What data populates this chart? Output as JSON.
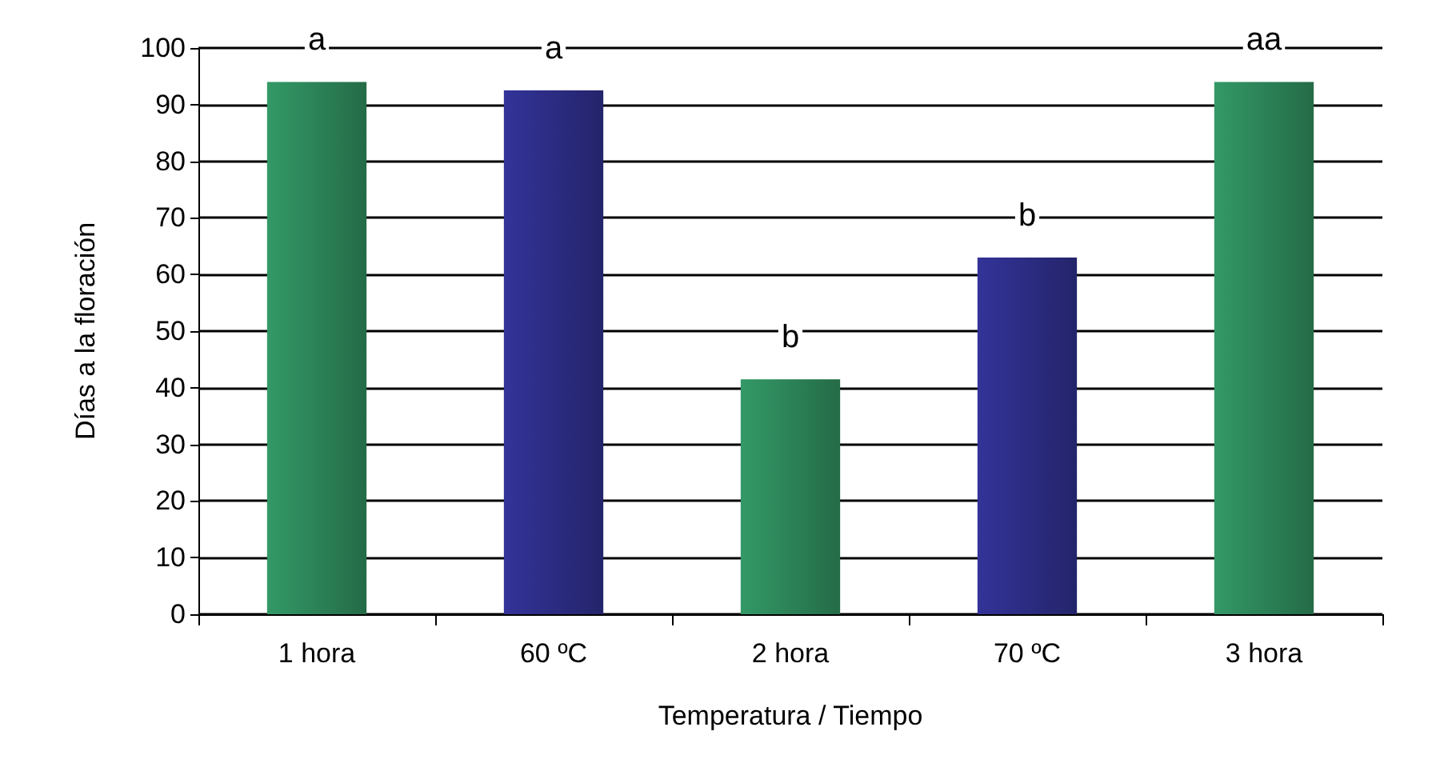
{
  "chart_data": {
    "type": "bar",
    "xlabel": "Temperatura / Tiempo",
    "ylabel": "Días a la floración",
    "categories": [
      "1 hora",
      "60 ºC",
      "2 hora",
      "70 ºC",
      "3 hora"
    ],
    "values": [
      94,
      92.5,
      41.5,
      63,
      94
    ],
    "colors": [
      "#339966",
      "#333399",
      "#339966",
      "#333399",
      "#339966"
    ],
    "value_labels": [
      "a",
      "a",
      "b",
      "b",
      "aa"
    ],
    "ylim": [
      0,
      100
    ],
    "yticks": [
      0,
      10,
      20,
      30,
      40,
      50,
      60,
      70,
      80,
      90,
      100
    ],
    "grid": "y"
  }
}
